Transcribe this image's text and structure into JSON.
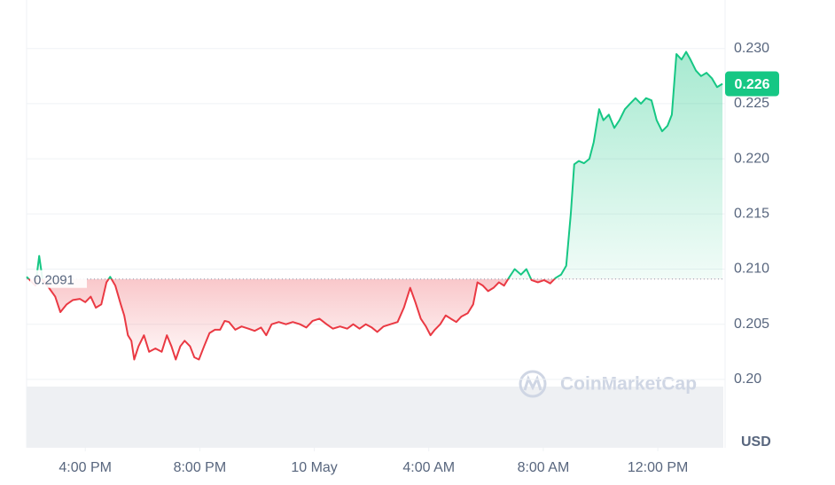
{
  "chart_data": {
    "type": "line",
    "x": [
      13.95,
      14.26,
      14.39,
      14.51,
      14.73,
      14.95,
      15.13,
      15.35,
      15.57,
      15.81,
      16.0,
      16.19,
      16.37,
      16.56,
      16.74,
      16.87,
      17.05,
      17.24,
      17.36,
      17.49,
      17.61,
      17.71,
      17.86,
      18.05,
      18.23,
      18.45,
      18.67,
      18.85,
      19.01,
      19.16,
      19.32,
      19.47,
      19.66,
      19.81,
      19.97,
      20.15,
      20.34,
      20.53,
      20.71,
      20.87,
      21.02,
      21.24,
      21.46,
      21.7,
      21.92,
      22.14,
      22.32,
      22.51,
      22.76,
      23.01,
      23.25,
      23.5,
      23.72,
      23.94,
      24.18,
      24.43,
      24.65,
      24.9,
      25.15,
      25.36,
      25.58,
      25.8,
      26.01,
      26.2,
      26.42,
      26.66,
      26.91,
      27.13,
      27.35,
      27.53,
      27.72,
      27.9,
      28.06,
      28.21,
      28.4,
      28.59,
      28.77,
      28.96,
      29.14,
      29.36,
      29.55,
      29.7,
      29.89,
      30.07,
      30.26,
      30.45,
      30.63,
      30.82,
      31.0,
      31.22,
      31.41,
      31.59,
      31.81,
      32.03,
      32.24,
      32.43,
      32.62,
      32.8,
      32.96,
      33.08,
      33.24,
      33.42,
      33.61,
      33.76,
      33.95,
      34.1,
      34.29,
      34.48,
      34.66,
      34.85,
      35.03,
      35.22,
      35.41,
      35.59,
      35.78,
      35.96,
      36.15,
      36.34,
      36.49,
      36.65,
      36.83,
      36.99,
      37.14,
      37.33,
      37.51,
      37.7,
      37.89,
      38.07,
      38.26
    ],
    "values": [
      0.2093,
      0.2085,
      0.2112,
      0.209,
      0.2083,
      0.2075,
      0.2061,
      0.2068,
      0.2072,
      0.2073,
      0.207,
      0.2075,
      0.2065,
      0.2068,
      0.2088,
      0.2093,
      0.2085,
      0.2068,
      0.2058,
      0.204,
      0.2035,
      0.2018,
      0.203,
      0.204,
      0.2025,
      0.2028,
      0.2025,
      0.204,
      0.203,
      0.2018,
      0.203,
      0.2035,
      0.203,
      0.202,
      0.2018,
      0.203,
      0.2042,
      0.2045,
      0.2045,
      0.2053,
      0.2052,
      0.2045,
      0.2048,
      0.2046,
      0.2044,
      0.2047,
      0.204,
      0.205,
      0.2052,
      0.205,
      0.2052,
      0.205,
      0.2047,
      0.2053,
      0.2055,
      0.205,
      0.2046,
      0.2048,
      0.2046,
      0.205,
      0.2046,
      0.205,
      0.2047,
      0.2043,
      0.2048,
      0.205,
      0.2052,
      0.2065,
      0.2083,
      0.207,
      0.2055,
      0.2048,
      0.204,
      0.2045,
      0.205,
      0.2058,
      0.2055,
      0.2052,
      0.2057,
      0.206,
      0.2068,
      0.2088,
      0.2085,
      0.208,
      0.2083,
      0.2088,
      0.2085,
      0.2093,
      0.21,
      0.2095,
      0.21,
      0.209,
      0.2088,
      0.209,
      0.2087,
      0.2092,
      0.2095,
      0.2103,
      0.215,
      0.2195,
      0.2198,
      0.2196,
      0.22,
      0.2215,
      0.2245,
      0.2235,
      0.224,
      0.2228,
      0.2235,
      0.2245,
      0.225,
      0.2255,
      0.225,
      0.2255,
      0.2253,
      0.2235,
      0.2225,
      0.223,
      0.224,
      0.2295,
      0.229,
      0.2297,
      0.229,
      0.228,
      0.2275,
      0.2278,
      0.2273,
      0.2265,
      0.2268
    ],
    "baseline": 0.2091,
    "current_price": 0.226,
    "colors": {
      "up": "#16c784",
      "down": "#ea3943"
    },
    "xlim": [
      13.95,
      38.35
    ],
    "xticks": [
      {
        "value": 16,
        "label": "4:00 PM"
      },
      {
        "value": 20,
        "label": "8:00 PM"
      },
      {
        "value": 24,
        "label": "10 May"
      },
      {
        "value": 28,
        "label": "4:00 AM"
      },
      {
        "value": 32,
        "label": "8:00 AM"
      },
      {
        "value": 36,
        "label": "12:00 PM"
      }
    ],
    "ylim": [
      0.1938,
      0.2344
    ],
    "yticks": [
      {
        "value": 0.2,
        "label": "0.20"
      },
      0.205,
      {
        "value": 0.21,
        "label": "0.210"
      },
      0.215,
      {
        "value": 0.22,
        "label": "0.220"
      },
      0.225,
      {
        "value": 0.23,
        "label": "0.230"
      }
    ],
    "grid": true,
    "y_unit": "USD",
    "watermark": "CoinMarketCap"
  }
}
